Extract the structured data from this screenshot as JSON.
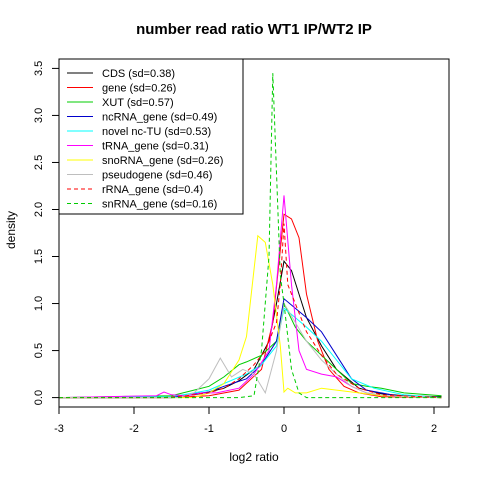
{
  "chart_data": {
    "type": "line",
    "title": "number read ratio WT1 IP/WT2 IP",
    "xlabel": "log2 ratio",
    "ylabel": "density",
    "xlim": [
      -3.0,
      2.2
    ],
    "ylim": [
      -0.1,
      3.6
    ],
    "xticks": [
      "-3",
      "-2",
      "-1",
      "0",
      "1",
      "2"
    ],
    "yticks": [
      "0.0",
      "0.5",
      "1.0",
      "1.5",
      "2.0",
      "2.5",
      "3.0",
      "3.5"
    ],
    "legend_position": "top-left",
    "series": [
      {
        "name": "CDS (sd=0.38)",
        "color": "#000000",
        "dash": false,
        "x": [
          -3.0,
          -2.0,
          -1.5,
          -1.2,
          -1.0,
          -0.8,
          -0.6,
          -0.4,
          -0.2,
          -0.1,
          0.0,
          0.1,
          0.2,
          0.3,
          0.5,
          0.7,
          1.0,
          1.3,
          1.6,
          2.1
        ],
        "y": [
          0.0,
          0.0,
          0.01,
          0.03,
          0.06,
          0.1,
          0.18,
          0.3,
          0.6,
          1.0,
          1.45,
          1.35,
          1.1,
          0.85,
          0.55,
          0.3,
          0.1,
          0.04,
          0.02,
          0.01
        ]
      },
      {
        "name": "gene (sd=0.26)",
        "color": "#ff0000",
        "dash": false,
        "x": [
          -3.0,
          -1.5,
          -1.0,
          -0.6,
          -0.3,
          -0.15,
          0.0,
          0.1,
          0.2,
          0.3,
          0.45,
          0.6,
          0.8,
          1.0,
          1.3,
          2.1
        ],
        "y": [
          0.0,
          0.0,
          0.02,
          0.08,
          0.3,
          0.8,
          1.95,
          1.9,
          1.7,
          1.1,
          0.6,
          0.3,
          0.12,
          0.05,
          0.01,
          0.0
        ]
      },
      {
        "name": "XUT (sd=0.57)",
        "color": "#00cc00",
        "dash": false,
        "x": [
          -3.0,
          -1.5,
          -1.2,
          -1.0,
          -0.8,
          -0.6,
          -0.5,
          -0.3,
          -0.1,
          0.0,
          0.15,
          0.3,
          0.5,
          0.7,
          0.9,
          1.1,
          1.3,
          1.6,
          2.1
        ],
        "y": [
          0.0,
          0.02,
          0.08,
          0.12,
          0.22,
          0.35,
          0.38,
          0.45,
          0.6,
          1.0,
          0.75,
          0.6,
          0.45,
          0.3,
          0.15,
          0.12,
          0.1,
          0.05,
          0.02
        ]
      },
      {
        "name": "ncRNA_gene (sd=0.49)",
        "color": "#0000cc",
        "dash": false,
        "x": [
          -3.0,
          -1.5,
          -1.2,
          -1.0,
          -0.8,
          -0.5,
          -0.3,
          -0.1,
          0.0,
          0.15,
          0.3,
          0.5,
          0.7,
          0.9,
          1.1,
          1.5,
          2.1
        ],
        "y": [
          0.0,
          0.0,
          0.04,
          0.06,
          0.12,
          0.2,
          0.35,
          0.6,
          1.05,
          0.95,
          0.85,
          0.7,
          0.45,
          0.2,
          0.08,
          0.02,
          0.0
        ]
      },
      {
        "name": "novel nc-TU (sd=0.53)",
        "color": "#00ffff",
        "dash": false,
        "x": [
          -3.0,
          -1.5,
          -1.2,
          -1.0,
          -0.8,
          -0.5,
          -0.3,
          -0.1,
          0.0,
          0.15,
          0.3,
          0.5,
          0.7,
          0.9,
          1.2,
          1.6,
          2.1
        ],
        "y": [
          0.0,
          0.01,
          0.05,
          0.08,
          0.15,
          0.25,
          0.35,
          0.55,
          0.95,
          0.85,
          0.75,
          0.6,
          0.4,
          0.2,
          0.1,
          0.03,
          0.0
        ]
      },
      {
        "name": "tRNA_gene (sd=0.31)",
        "color": "#ff00ff",
        "dash": false,
        "x": [
          -3.0,
          -1.7,
          -1.6,
          -1.5,
          -1.3,
          -1.1,
          -0.9,
          -0.6,
          -0.4,
          -0.2,
          -0.1,
          0.0,
          0.1,
          0.2,
          0.3,
          0.5,
          0.7,
          0.9,
          1.1,
          1.3,
          2.1
        ],
        "y": [
          0.0,
          0.02,
          0.06,
          0.03,
          0.02,
          0.05,
          0.05,
          0.1,
          0.25,
          0.5,
          1.2,
          2.15,
          1.2,
          0.5,
          0.3,
          0.25,
          0.22,
          0.12,
          0.05,
          0.02,
          0.0
        ]
      },
      {
        "name": "snoRNA_gene (sd=0.26)",
        "color": "#ffff00",
        "dash": false,
        "x": [
          -3.0,
          -1.2,
          -1.0,
          -0.8,
          -0.6,
          -0.5,
          -0.35,
          -0.25,
          -0.15,
          -0.05,
          0.0,
          0.05,
          0.15,
          0.3,
          0.5,
          0.7,
          1.0,
          1.3,
          2.1
        ],
        "y": [
          0.0,
          0.0,
          0.05,
          0.15,
          0.4,
          0.65,
          1.72,
          1.65,
          1.2,
          0.55,
          0.06,
          0.1,
          0.05,
          0.05,
          0.1,
          0.08,
          0.05,
          0.02,
          0.0
        ]
      },
      {
        "name": "pseudogene (sd=0.46)",
        "color": "#bebebe",
        "dash": false,
        "x": [
          -3.0,
          -1.4,
          -1.2,
          -1.0,
          -0.85,
          -0.7,
          -0.55,
          -0.4,
          -0.25,
          -0.1,
          0.0,
          0.15,
          0.3,
          0.5,
          0.7,
          0.9,
          1.1,
          1.4,
          2.1
        ],
        "y": [
          0.0,
          0.0,
          0.05,
          0.2,
          0.42,
          0.22,
          0.3,
          0.25,
          0.05,
          0.5,
          1.0,
          0.8,
          0.6,
          0.4,
          0.25,
          0.12,
          0.05,
          0.02,
          0.0
        ]
      },
      {
        "name": "rRNA_gene (sd=0.4)",
        "color": "#ff0000",
        "dash": true,
        "x": [
          -3.0,
          -1.6,
          -1.3,
          -1.0,
          -0.8,
          -0.6,
          -0.4,
          -0.25,
          -0.1,
          -0.05,
          0.0,
          0.05,
          0.2,
          0.3,
          0.5,
          0.7,
          1.0,
          1.3,
          2.1
        ],
        "y": [
          0.0,
          0.0,
          0.02,
          0.05,
          0.1,
          0.2,
          0.35,
          0.5,
          0.8,
          1.2,
          1.85,
          1.2,
          0.9,
          0.7,
          0.45,
          0.25,
          0.1,
          0.03,
          0.0
        ]
      },
      {
        "name": "snRNA_gene (sd=0.16)",
        "color": "#00cc00",
        "dash": true,
        "x": [
          -3.0,
          -0.6,
          -0.4,
          -0.3,
          -0.2,
          -0.15,
          -0.05,
          0.0,
          0.1,
          0.2,
          0.3,
          2.1
        ],
        "y": [
          0.0,
          0.0,
          0.02,
          0.5,
          1.5,
          3.45,
          1.3,
          1.0,
          0.3,
          0.05,
          0.0,
          0.0
        ]
      }
    ]
  }
}
